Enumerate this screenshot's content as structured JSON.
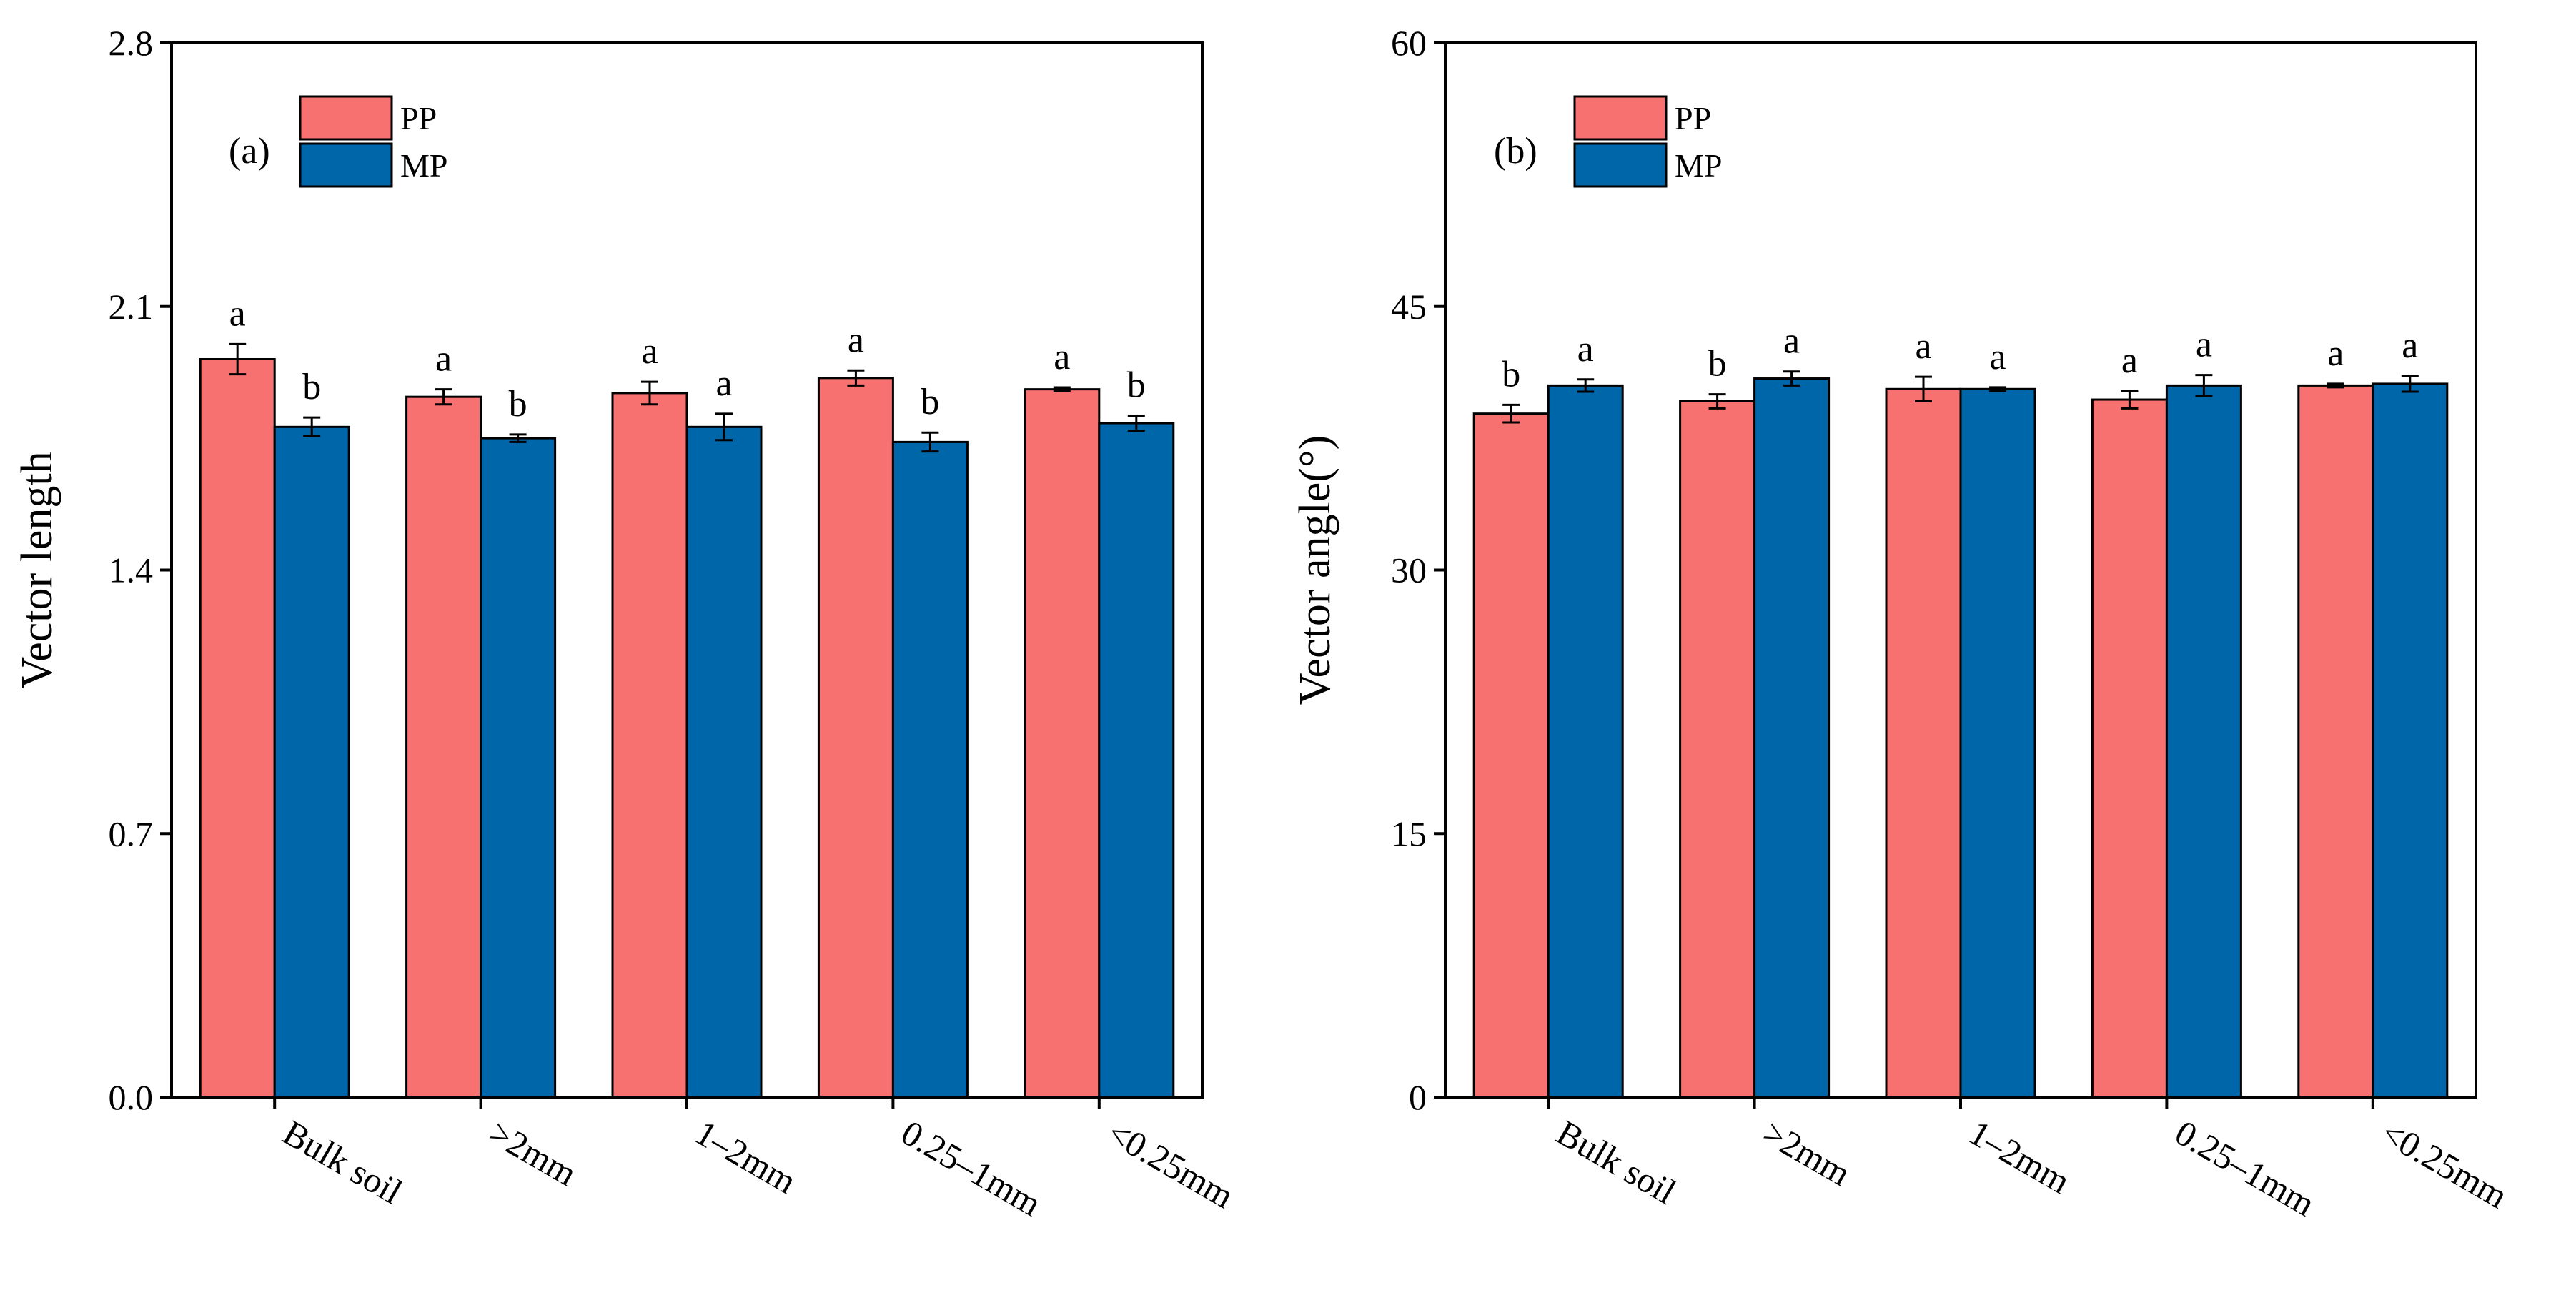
{
  "colors": {
    "pp": "#F87171",
    "mp": "#0066AA",
    "axis": "#000000"
  },
  "chart_data": [
    {
      "type": "bar",
      "panel_label": "(a)",
      "ylabel": "Vector length",
      "xlabel": "",
      "ylim": [
        0,
        2.8
      ],
      "yticks": [
        "0.0",
        "0.7",
        "1.4",
        "2.1",
        "2.8"
      ],
      "categories": [
        "Bulk soil",
        ">2mm",
        "1–2mm",
        "0.25–1mm",
        "<0.25mm"
      ],
      "legend": {
        "position": "top-left",
        "entries": [
          "PP",
          "MP"
        ]
      },
      "series": [
        {
          "name": "PP",
          "color": "#F87171",
          "values": [
            1.96,
            1.86,
            1.87,
            1.91,
            1.88
          ],
          "errors": [
            0.04,
            0.02,
            0.03,
            0.02,
            0.005
          ],
          "labels": [
            "a",
            "a",
            "a",
            "a",
            "a"
          ]
        },
        {
          "name": "MP",
          "color": "#0066AA",
          "values": [
            1.78,
            1.75,
            1.78,
            1.74,
            1.79
          ],
          "errors": [
            0.025,
            0.01,
            0.035,
            0.025,
            0.02
          ],
          "labels": [
            "b",
            "b",
            "a",
            "b",
            "b"
          ]
        }
      ]
    },
    {
      "type": "bar",
      "panel_label": "(b)",
      "ylabel": "Vector angle(°)",
      "xlabel": "",
      "ylim": [
        0,
        60
      ],
      "yticks": [
        "0",
        "15",
        "30",
        "45",
        "60"
      ],
      "categories": [
        "Bulk soil",
        ">2mm",
        "1–2mm",
        "0.25–1mm",
        "<0.25mm"
      ],
      "legend": {
        "position": "top-left",
        "entries": [
          "PP",
          "MP"
        ]
      },
      "series": [
        {
          "name": "PP",
          "color": "#F87171",
          "values": [
            38.9,
            39.6,
            40.3,
            39.7,
            40.5
          ],
          "errors": [
            0.5,
            0.4,
            0.7,
            0.5,
            0.1
          ],
          "labels": [
            "b",
            "b",
            "a",
            "a",
            "a"
          ]
        },
        {
          "name": "MP",
          "color": "#0066AA",
          "values": [
            40.5,
            40.9,
            40.3,
            40.5,
            40.6
          ],
          "errors": [
            0.35,
            0.4,
            0.1,
            0.6,
            0.45
          ],
          "labels": [
            "a",
            "a",
            "a",
            "a",
            "a"
          ]
        }
      ]
    }
  ]
}
